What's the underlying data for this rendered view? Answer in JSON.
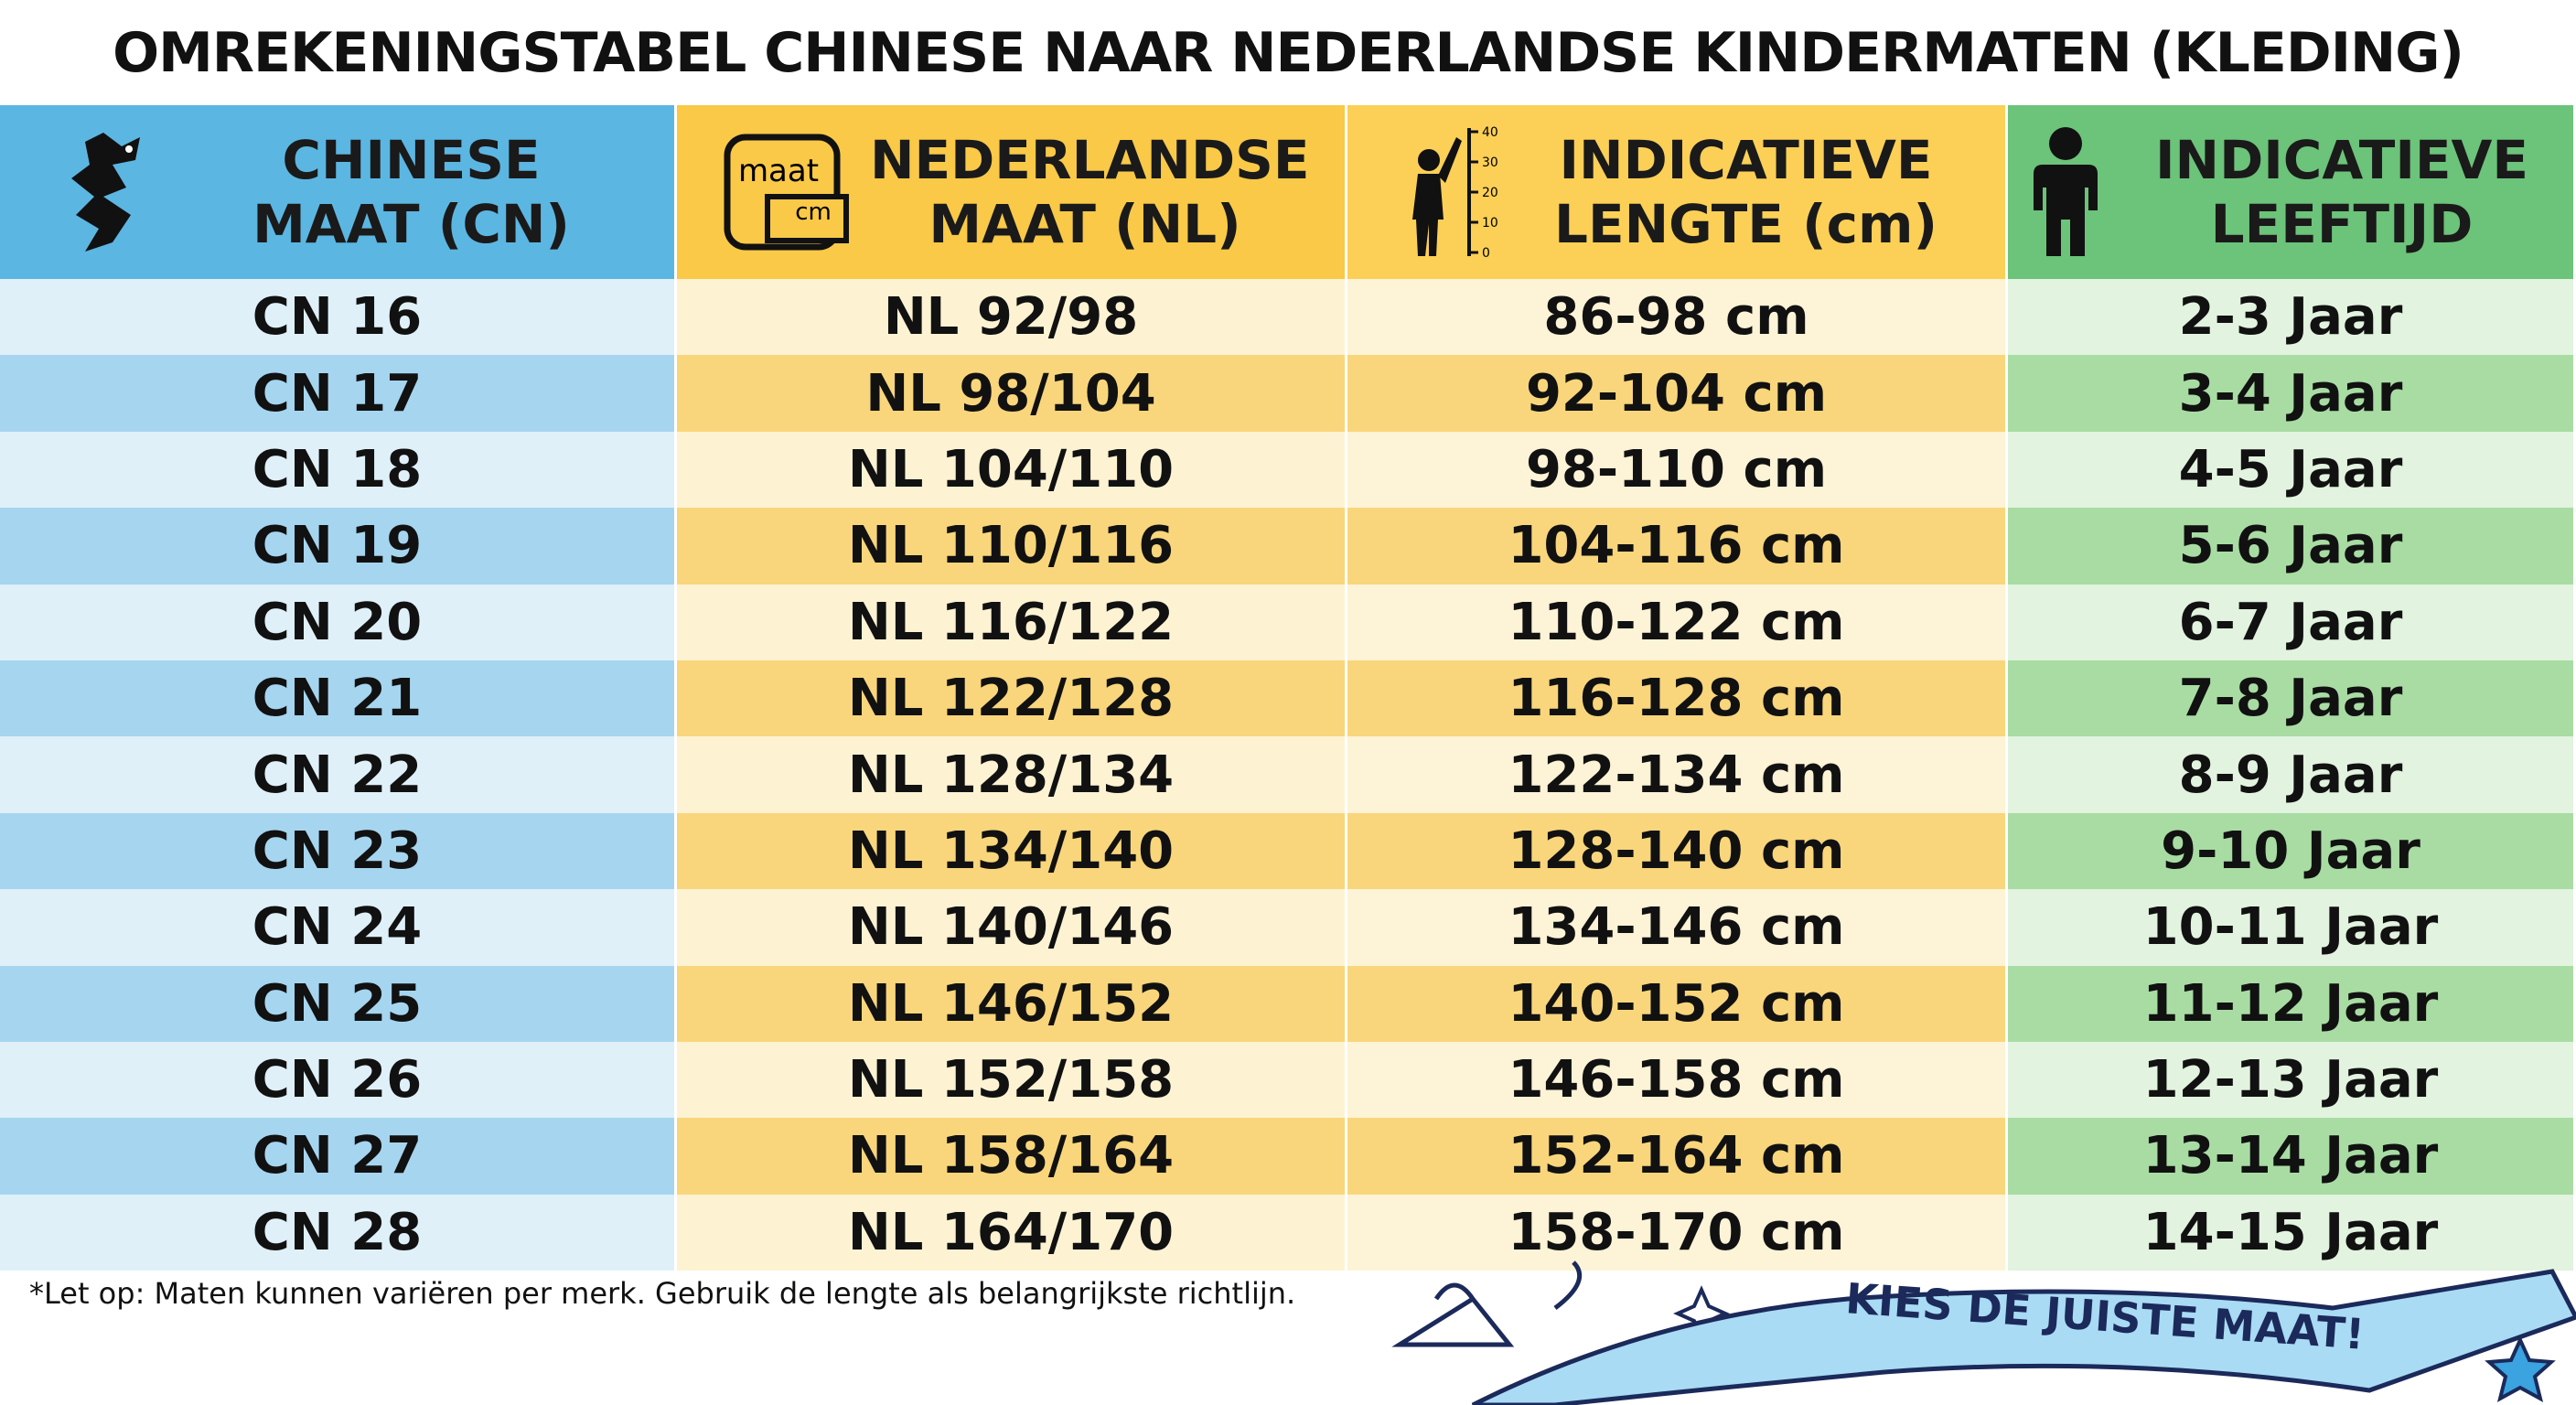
{
  "title": "OMREKENINGSTABEL CHINESE NAAR NEDERLANDSE KINDERMATEN (KLEDING)",
  "table": {
    "header": [
      "CHINESE MAAT (CN)",
      "NEDERLANDSE MAAT (NL)",
      "INDICATIEVE LENGTE (cm)",
      "INDICATIEVE LEEFTIJD"
    ],
    "rows": [
      [
        "CN 16",
        "NL 92/98",
        "86-98 cm",
        "2-3 Jaar"
      ],
      [
        "CN 17",
        "NL 98/104",
        "92-104 cm",
        "3-4 Jaar"
      ],
      [
        "CN 18",
        "NL 104/110",
        "98-110 cm",
        "4-5 Jaar"
      ],
      [
        "CN 19",
        "NL 110/116",
        "104-116 cm",
        "5-6 Jaar"
      ],
      [
        "CN 20",
        "NL 116/122",
        "110-122 cm",
        "6-7 Jaar"
      ],
      [
        "CN 21",
        "NL 122/128",
        "116-128 cm",
        "7-8 Jaar"
      ],
      [
        "CN 22",
        "NL 128/134",
        "122-134 cm",
        "8-9 Jaar"
      ],
      [
        "CN 23",
        "NL 134/140",
        "128-140 cm",
        "9-10 Jaar"
      ],
      [
        "CN 24",
        "NL 140/146",
        "134-146 cm",
        "10-11 Jaar"
      ],
      [
        "CN 25",
        "NL 146/152",
        "140-152 cm",
        "11-12 Jaar"
      ],
      [
        "CN 26",
        "NL 152/158",
        "146-158 cm",
        "12-13 Jaar"
      ],
      [
        "CN 27",
        "NL 158/164",
        "152-164 cm",
        "13-14 Jaar"
      ],
      [
        "CN 28",
        "NL 164/170",
        "158-170 cm",
        "14-15 Jaar"
      ]
    ]
  },
  "icons": {
    "tape_top": "maat",
    "tape_bottom": "cm",
    "ruler_ticks": [
      "40",
      "30",
      "20",
      "10",
      "0"
    ]
  },
  "footnote": "*Let op: Maten kunnen variëren per merk. Gebruik de lengte als belangrijkste richtlijn.",
  "banner": "KIES DE JUISTE MAAT!"
}
